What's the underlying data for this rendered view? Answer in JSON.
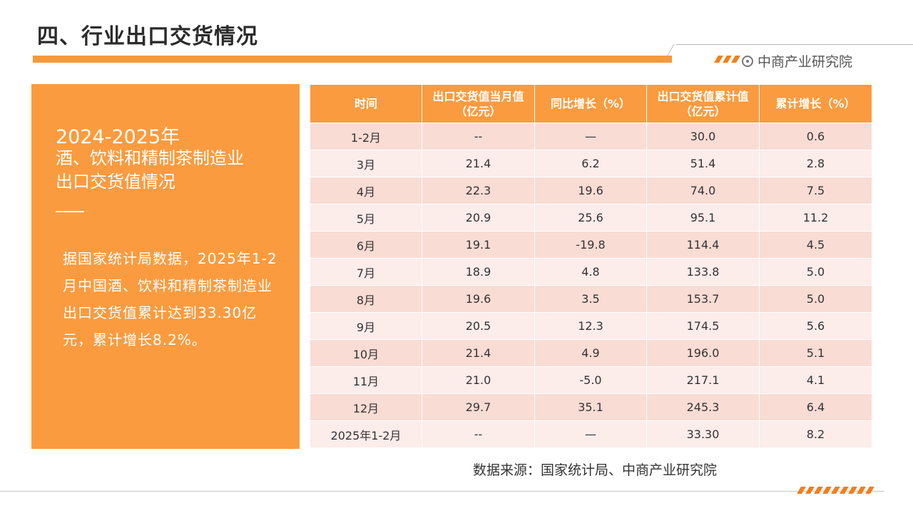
{
  "header": {
    "title": "四、行业出口交货情况",
    "brand": "中商产业研究院",
    "brand_icon": "target-circle-icon",
    "accent_color": "#f39a3c"
  },
  "left_panel": {
    "year": "2024-2025年",
    "subtitle_line1": "酒、饮料和精制茶制造业",
    "subtitle_line2": "出口交货值情况",
    "description": "据国家统计局数据，2025年1-2月中国酒、饮料和精制茶制造业出口交货值累计达到33.30亿元，累计增长8.2%。",
    "background_color": "#fb9b3f"
  },
  "table": {
    "headers": [
      "时间",
      "出口交货值当月值（亿元）",
      "同比增长（%）",
      "出口交货值累计值（亿元）",
      "累计增长（%）"
    ],
    "rows": [
      [
        "1-2月",
        "--",
        "—",
        "30.0",
        "0.6"
      ],
      [
        "3月",
        "21.4",
        "6.2",
        "51.4",
        "2.8"
      ],
      [
        "4月",
        "22.3",
        "19.6",
        "74.0",
        "7.5"
      ],
      [
        "5月",
        "20.9",
        "25.6",
        "95.1",
        "11.2"
      ],
      [
        "6月",
        "19.1",
        "-19.8",
        "114.4",
        "4.5"
      ],
      [
        "7月",
        "18.9",
        "4.8",
        "133.8",
        "5.0"
      ],
      [
        "8月",
        "19.6",
        "3.5",
        "153.7",
        "5.0"
      ],
      [
        "9月",
        "20.5",
        "12.3",
        "174.5",
        "5.6"
      ],
      [
        "10月",
        "21.4",
        "4.9",
        "196.0",
        "5.1"
      ],
      [
        "11月",
        "21.0",
        "-5.0",
        "217.1",
        "4.1"
      ],
      [
        "12月",
        "29.7",
        "35.1",
        "245.3",
        "6.4"
      ],
      [
        "2025年1-2月",
        "--",
        "—",
        "33.30",
        "8.2"
      ]
    ]
  },
  "source": "数据来源：国家统计局、中商产业研究院"
}
